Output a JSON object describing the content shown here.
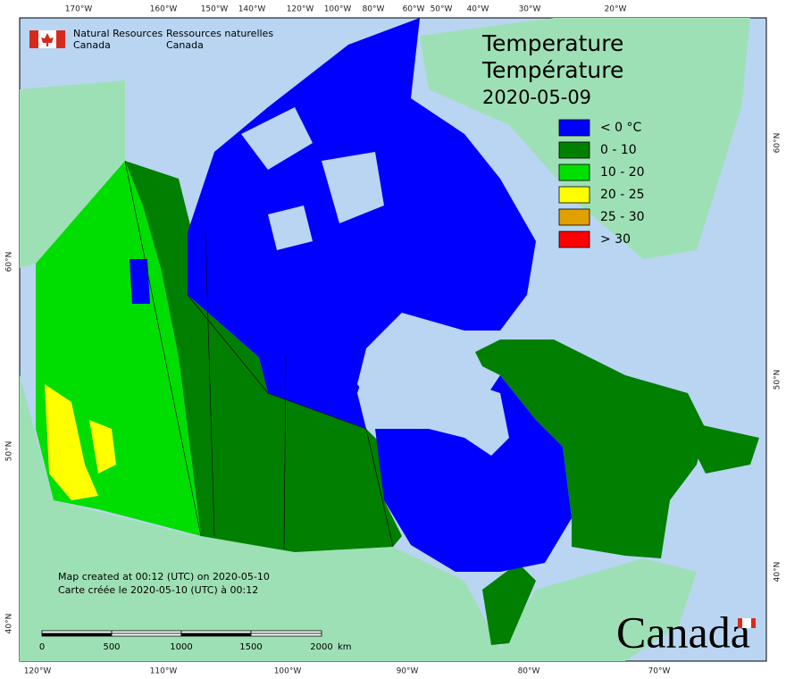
{
  "header": {
    "org_en": [
      "Natural Resources",
      "Canada"
    ],
    "org_fr": [
      "Ressources naturelles",
      "Canada"
    ]
  },
  "title": {
    "en": "Temperature",
    "fr": "Température",
    "date": "2020-05-09"
  },
  "legend": [
    {
      "label": "< 0 °C",
      "color": "#0000ff"
    },
    {
      "label": "0 - 10",
      "color": "#008000"
    },
    {
      "label": "10 - 20",
      "color": "#00e000"
    },
    {
      "label": "20 - 25",
      "color": "#ffff00"
    },
    {
      "label": "25 - 30",
      "color": "#e0a000"
    },
    {
      "label": "> 30",
      "color": "#ff0000"
    }
  ],
  "graticule": {
    "top": [
      "170°W",
      "160°W",
      "150°W",
      "140°W",
      "120°W",
      "100°W",
      "80°W",
      "60°W",
      "50°W",
      "40°W",
      "30°W",
      "20°W"
    ],
    "bottom": [
      "120°W",
      "110°W",
      "100°W",
      "90°W",
      "80°W",
      "70°W"
    ],
    "left": [
      "60°N",
      "50°N",
      "40°N"
    ],
    "right": [
      "60°N",
      "50°N",
      "40°N"
    ]
  },
  "notes": [
    "Map created at 00:12 (UTC) on 2020-05-10",
    "Carte créée le 2020-05-10 (UTC) à 00:12"
  ],
  "scale_bar": {
    "labels": [
      "0",
      "500",
      "1000",
      "1500",
      "2000"
    ],
    "unit": "km"
  },
  "wordmark": "Canada"
}
